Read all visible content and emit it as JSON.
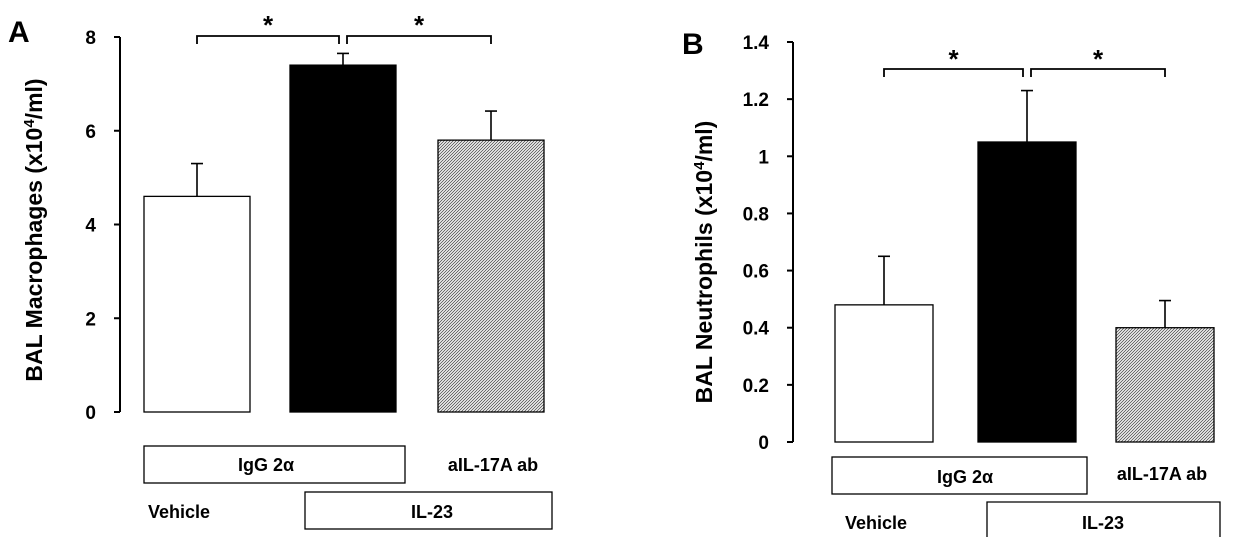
{
  "chart_data": [
    {
      "type": "bar",
      "panel": "A",
      "ylabel_pre": "BAL Macrophages (x10",
      "ylabel_sup": "4",
      "ylabel_post": "/ml)",
      "ylim": [
        0,
        8
      ],
      "yticks": [
        "0",
        "2",
        "4",
        "6",
        "8"
      ],
      "bars": [
        {
          "value": 4.6,
          "error": 0.7,
          "fill": "white"
        },
        {
          "value": 7.4,
          "error": 0.25,
          "fill": "black"
        },
        {
          "value": 5.8,
          "error": 0.62,
          "fill": "hatched"
        }
      ],
      "significance": [
        "*",
        "*"
      ],
      "group_labels": {
        "igg": "IgG 2α",
        "ab": "aIL-17A ab",
        "vehicle": "Vehicle",
        "il23": "IL-23"
      }
    },
    {
      "type": "bar",
      "panel": "B",
      "ylabel_pre": "BAL Neutrophils (x10",
      "ylabel_sup": "4",
      "ylabel_post": "/ml)",
      "ylim": [
        0,
        1.4
      ],
      "yticks": [
        "0",
        "0.2",
        "0.4",
        "0.6",
        "0.8",
        "1",
        "1.2",
        "1.4"
      ],
      "bars": [
        {
          "value": 0.48,
          "error": 0.17,
          "fill": "white"
        },
        {
          "value": 1.05,
          "error": 0.18,
          "fill": "black"
        },
        {
          "value": 0.4,
          "error": 0.095,
          "fill": "hatched"
        }
      ],
      "significance": [
        "*",
        "*"
      ],
      "group_labels": {
        "igg": "IgG 2α",
        "ab": "aIL-17A ab",
        "vehicle": "Vehicle",
        "il23": "IL-23"
      }
    }
  ],
  "colors": {
    "hatch_fill": "#c8c8c8",
    "bar_black": "#000000",
    "bar_white": "#ffffff"
  }
}
